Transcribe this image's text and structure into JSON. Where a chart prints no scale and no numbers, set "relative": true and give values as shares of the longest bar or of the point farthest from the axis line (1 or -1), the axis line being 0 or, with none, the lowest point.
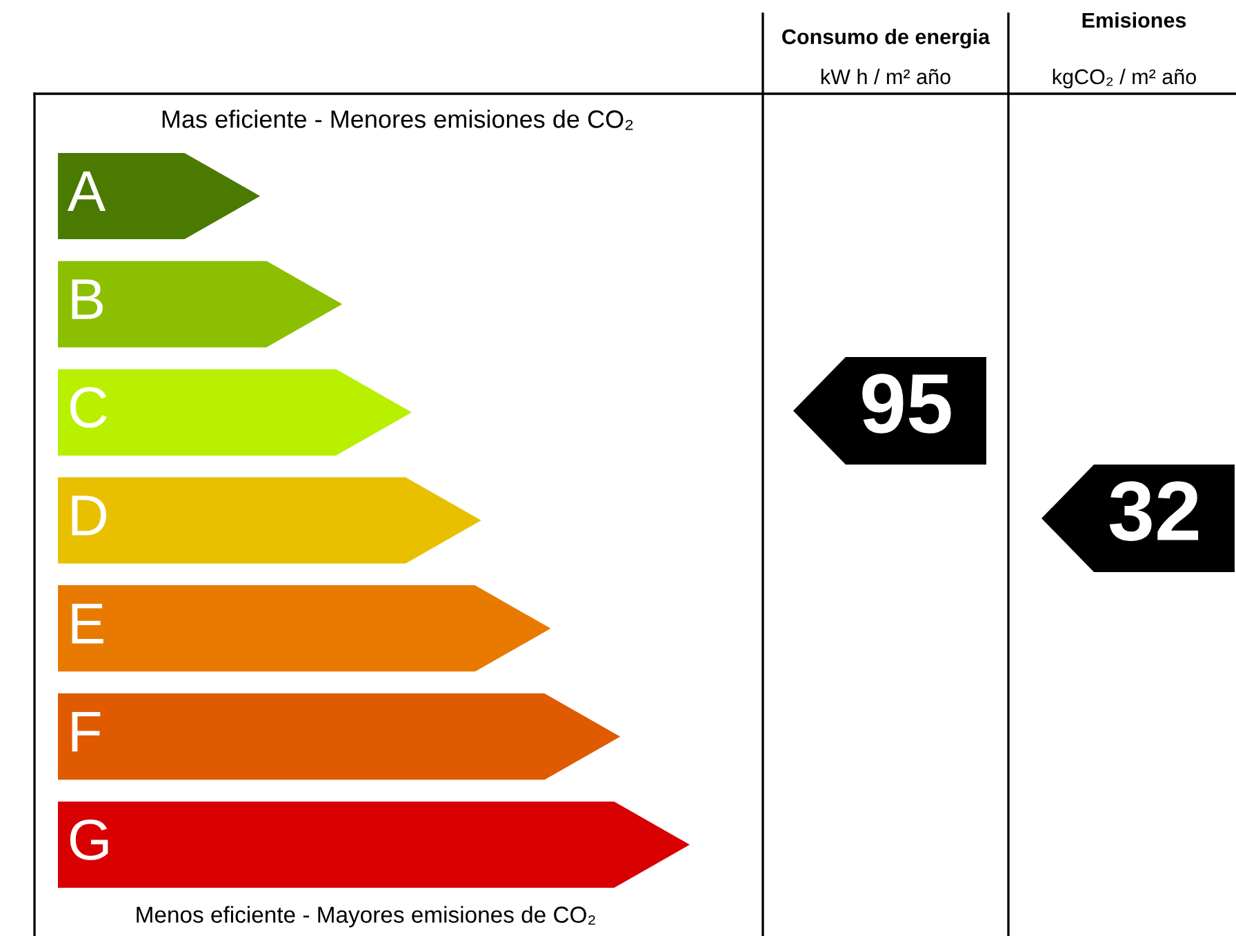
{
  "chart_data": {
    "type": "bar",
    "orientation": "horizontal",
    "relative": true,
    "title": "Mas eficiente - Menores emisiones de CO₂",
    "categories": [
      "A",
      "B",
      "C",
      "D",
      "E",
      "F",
      "G"
    ],
    "values": [
      0.32,
      0.45,
      0.56,
      0.67,
      0.78,
      0.89,
      1.0
    ],
    "colors": [
      "#4a7a00",
      "#8cbf00",
      "#b8f000",
      "#e8c000",
      "#e87a00",
      "#e05a00",
      "#d80000"
    ],
    "annotations": [
      "Consumo de energia",
      "kW h / m² año",
      "Emisiones",
      "kgCO₂ / m² año",
      "Menos eficiente - Mayores emisiones de CO₂",
      "95",
      "32"
    ]
  }
}
